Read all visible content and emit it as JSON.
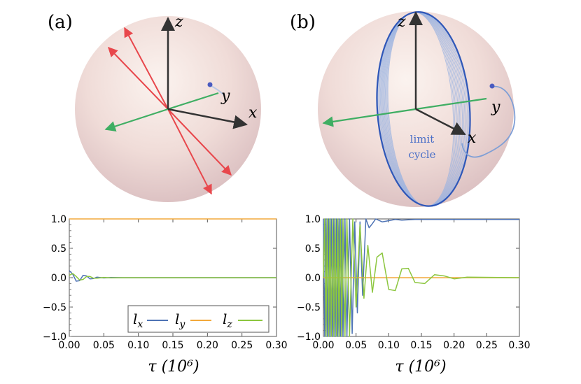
{
  "panels": {
    "a": {
      "label": "(a)"
    },
    "b": {
      "label": "(b)"
    }
  },
  "sphere_axes": {
    "x": "x",
    "y": "y",
    "z": "z"
  },
  "limit_cycle": {
    "line1": "limit",
    "line2": "cycle"
  },
  "x_axis_label": "τ (10⁶)",
  "legend": {
    "lx": "l_x",
    "ly": "l_y",
    "lz": "l_z"
  },
  "colors": {
    "lx": "#4e73b5",
    "ly": "#f2a93b",
    "lz": "#8cc63f",
    "arrow_red": "#e8474c",
    "arrow_green": "#3fae63",
    "axis": "#333333",
    "cycle": "#2f57b8"
  },
  "chart_data": [
    {
      "type": "line",
      "panel": "a",
      "xlabel": "τ (10⁶)",
      "ylabel": "",
      "xlim": [
        0.0,
        0.3
      ],
      "ylim": [
        -1.0,
        1.0
      ],
      "xticks": [
        "0.00",
        "0.05",
        "0.10",
        "0.15",
        "0.20",
        "0.25",
        "0.30"
      ],
      "yticks": [
        "1.0",
        "0.5",
        "0.0",
        "-0.5",
        "-1.0"
      ],
      "series": [
        {
          "name": "l_x",
          "x": [
            0.0,
            0.005,
            0.01,
            0.015,
            0.02,
            0.025,
            0.03,
            0.035,
            0.04,
            0.05,
            0.06,
            0.08,
            0.1,
            0.3
          ],
          "y": [
            0.12,
            0.06,
            -0.06,
            -0.05,
            0.04,
            0.03,
            -0.02,
            -0.015,
            0.01,
            -0.005,
            0.002,
            0.0,
            0.0,
            0.0
          ]
        },
        {
          "name": "l_y",
          "x": [
            0.0,
            0.3
          ],
          "y": [
            1.0,
            1.0
          ]
        },
        {
          "name": "l_z",
          "x": [
            0.0,
            0.005,
            0.01,
            0.015,
            0.02,
            0.025,
            0.03,
            0.035,
            0.04,
            0.05,
            0.06,
            0.08,
            0.1,
            0.3
          ],
          "y": [
            0.04,
            0.07,
            0.02,
            -0.04,
            -0.03,
            0.02,
            0.02,
            -0.01,
            -0.01,
            0.005,
            -0.002,
            0.0,
            0.0,
            0.0
          ]
        }
      ]
    },
    {
      "type": "line",
      "panel": "b",
      "xlabel": "τ (10⁶)",
      "ylabel": "",
      "xlim": [
        0.0,
        0.3
      ],
      "ylim": [
        -1.0,
        1.0
      ],
      "xticks": [
        "0.00",
        "0.05",
        "0.10",
        "0.15",
        "0.20",
        "0.25",
        "0.30"
      ],
      "yticks": [
        "1.0",
        "0.5",
        "0.0",
        "-0.5",
        "-1.0"
      ],
      "series": [
        {
          "name": "l_x",
          "x": [
            0.0,
            0.002,
            0.004,
            0.006,
            0.008,
            0.01,
            0.012,
            0.014,
            0.016,
            0.018,
            0.02,
            0.022,
            0.024,
            0.026,
            0.028,
            0.03,
            0.033,
            0.036,
            0.04,
            0.044,
            0.048,
            0.052,
            0.056,
            0.06,
            0.065,
            0.07,
            0.075,
            0.08,
            0.09,
            0.1,
            0.11,
            0.12,
            0.14,
            0.3
          ],
          "y": [
            1.0,
            -1.0,
            1.0,
            -1.0,
            1.0,
            -1.0,
            1.0,
            -1.0,
            1.0,
            -1.0,
            1.0,
            -1.0,
            1.0,
            -1.0,
            1.0,
            -1.0,
            1.0,
            -1.0,
            1.0,
            -0.95,
            0.95,
            -0.6,
            0.95,
            -0.3,
            1.0,
            0.85,
            0.92,
            1.0,
            0.95,
            0.97,
            0.99,
            0.98,
            0.99,
            0.99
          ]
        },
        {
          "name": "l_y",
          "x": [
            0.0,
            0.3
          ],
          "y": [
            0.0,
            0.0
          ]
        },
        {
          "name": "l_z",
          "x": [
            0.0,
            0.002,
            0.004,
            0.006,
            0.008,
            0.01,
            0.012,
            0.014,
            0.016,
            0.018,
            0.02,
            0.022,
            0.024,
            0.026,
            0.028,
            0.03,
            0.033,
            0.036,
            0.04,
            0.045,
            0.05,
            0.056,
            0.062,
            0.068,
            0.075,
            0.082,
            0.09,
            0.1,
            0.11,
            0.12,
            0.13,
            0.14,
            0.155,
            0.17,
            0.185,
            0.2,
            0.22,
            0.3
          ],
          "y": [
            0.0,
            1.0,
            -1.0,
            1.0,
            -1.0,
            1.0,
            -1.0,
            1.0,
            -1.0,
            1.0,
            -1.0,
            1.0,
            -1.0,
            1.0,
            -1.0,
            1.0,
            -1.0,
            1.0,
            -1.0,
            1.0,
            -0.5,
            0.9,
            -0.35,
            0.55,
            -0.25,
            0.35,
            0.42,
            -0.2,
            -0.22,
            0.15,
            0.16,
            -0.08,
            -0.1,
            0.05,
            0.03,
            -0.02,
            0.01,
            0.0
          ]
        }
      ]
    }
  ]
}
